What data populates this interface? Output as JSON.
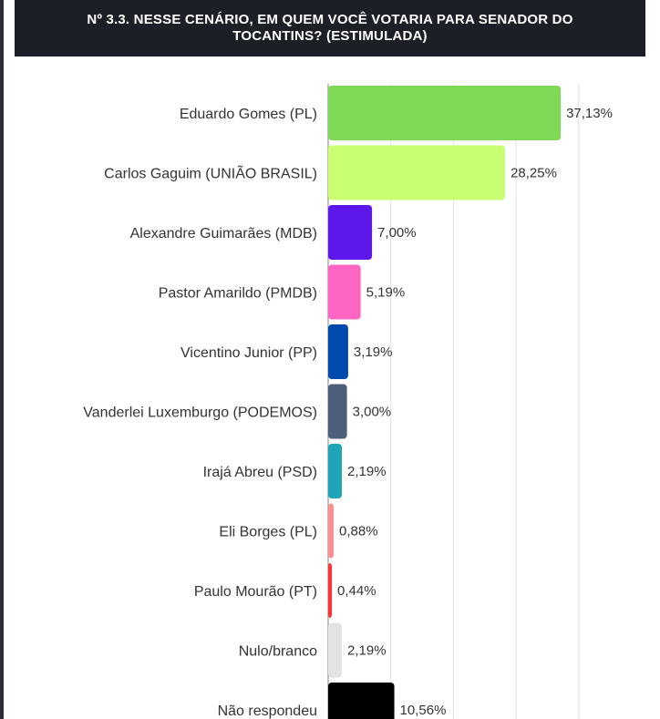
{
  "title": "Nº 3.3. NESSE CENÁRIO, EM QUEM VOCÊ VOTARIA PARA SENADOR DO TOCANTINS? (ESTIMULADA)",
  "chart_data": {
    "type": "bar",
    "orientation": "horizontal",
    "title": "Nº 3.3. NESSE CENÁRIO, EM QUEM VOCÊ VOTARIA PARA SENADOR DO TOCANTINS? (ESTIMULADA)",
    "categories": [
      "Eduardo Gomes (PL)",
      "Carlos Gaguim (UNIÃO BRASIL)",
      "Alexandre Guimarães (MDB)",
      "Pastor Amarildo (PMDB)",
      "Vicentino Junior (PP)",
      "Vanderlei Luxemburgo (PODEMOS)",
      "Irajá Abreu (PSD)",
      "Eli Borges (PL)",
      "Paulo Mourão (PT)",
      "Nulo/branco",
      "Não respondeu"
    ],
    "values": [
      37.13,
      28.25,
      7.0,
      5.19,
      3.19,
      3.0,
      2.19,
      0.88,
      0.44,
      2.19,
      10.56
    ],
    "value_labels": [
      "37,13%",
      "28,25%",
      "7,00%",
      "5,19%",
      "3,19%",
      "3,00%",
      "2,19%",
      "0,88%",
      "0,44%",
      "2,19%",
      "10,56%"
    ],
    "colors": [
      "#7ed957",
      "#c9ff73",
      "#5e17eb",
      "#ff66c4",
      "#004aad",
      "#4d5d7c",
      "#1ea6b8",
      "#ff8e8e",
      "#ff3131",
      "#e3e3e3",
      "#000000"
    ],
    "xlim": [
      0,
      40
    ],
    "grid": true,
    "legend": "none"
  }
}
